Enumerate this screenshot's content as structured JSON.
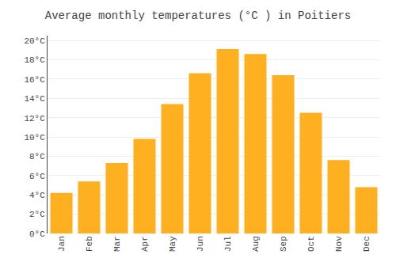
{
  "chart_data": {
    "type": "bar",
    "title": "Average monthly temperatures (°C ) in Poitiers",
    "categories": [
      "Jan",
      "Feb",
      "Mar",
      "Apr",
      "May",
      "Jun",
      "Jul",
      "Aug",
      "Sep",
      "Oct",
      "Nov",
      "Dec"
    ],
    "values": [
      4.2,
      5.4,
      7.3,
      9.8,
      13.4,
      16.6,
      19.1,
      18.6,
      16.4,
      12.5,
      7.6,
      4.8
    ],
    "color": "#FFB020",
    "ylim": [
      0,
      20.5
    ],
    "yticks": [
      {
        "value": 0,
        "label": "0°C"
      },
      {
        "value": 2,
        "label": "2°C"
      },
      {
        "value": 4,
        "label": "4°C"
      },
      {
        "value": 6,
        "label": "6°C"
      },
      {
        "value": 8,
        "label": "8°C"
      },
      {
        "value": 10,
        "label": "10°C"
      },
      {
        "value": 12,
        "label": "12°C"
      },
      {
        "value": 14,
        "label": "14°C"
      },
      {
        "value": 16,
        "label": "16°C"
      },
      {
        "value": 18,
        "label": "18°C"
      },
      {
        "value": 20,
        "label": "20°C"
      }
    ],
    "grid": true
  }
}
